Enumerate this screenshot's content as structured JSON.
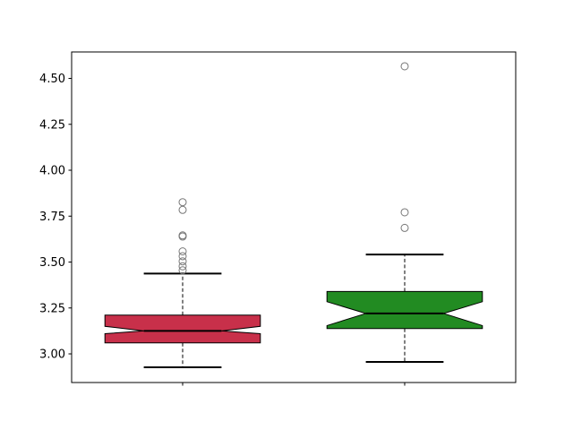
{
  "chart_data": {
    "type": "boxplot",
    "notched": true,
    "title": "",
    "xlabel": "",
    "ylabel": "",
    "xlim": [
      0.5,
      2.5
    ],
    "ylim": [
      2.844,
      4.644
    ],
    "yticks": [
      3.0,
      3.25,
      3.5,
      3.75,
      4.0,
      4.25,
      4.5
    ],
    "ytick_labels": [
      "3.00",
      "3.25",
      "3.50",
      "3.75",
      "4.00",
      "4.25",
      "4.50"
    ],
    "xticks": [
      1,
      2
    ],
    "xtick_labels": [
      "",
      ""
    ],
    "grid": false,
    "series": [
      {
        "position": 1,
        "color": "#c8304a",
        "whisker_low": 2.927,
        "q1": 3.06,
        "notch_low": 3.11,
        "median": 3.125,
        "notch_high": 3.15,
        "q3": 3.211,
        "whisker_high": 3.437,
        "outliers": [
          3.826,
          3.784,
          3.645,
          3.639,
          3.558,
          3.532,
          3.504,
          3.477,
          3.455
        ]
      },
      {
        "position": 2,
        "color": "#228b22",
        "whisker_low": 2.956,
        "q1": 3.138,
        "notch_low": 3.154,
        "median": 3.22,
        "notch_high": 3.284,
        "q3": 3.34,
        "whisker_high": 3.541,
        "outliers": [
          4.566,
          3.771,
          3.686
        ]
      }
    ]
  }
}
